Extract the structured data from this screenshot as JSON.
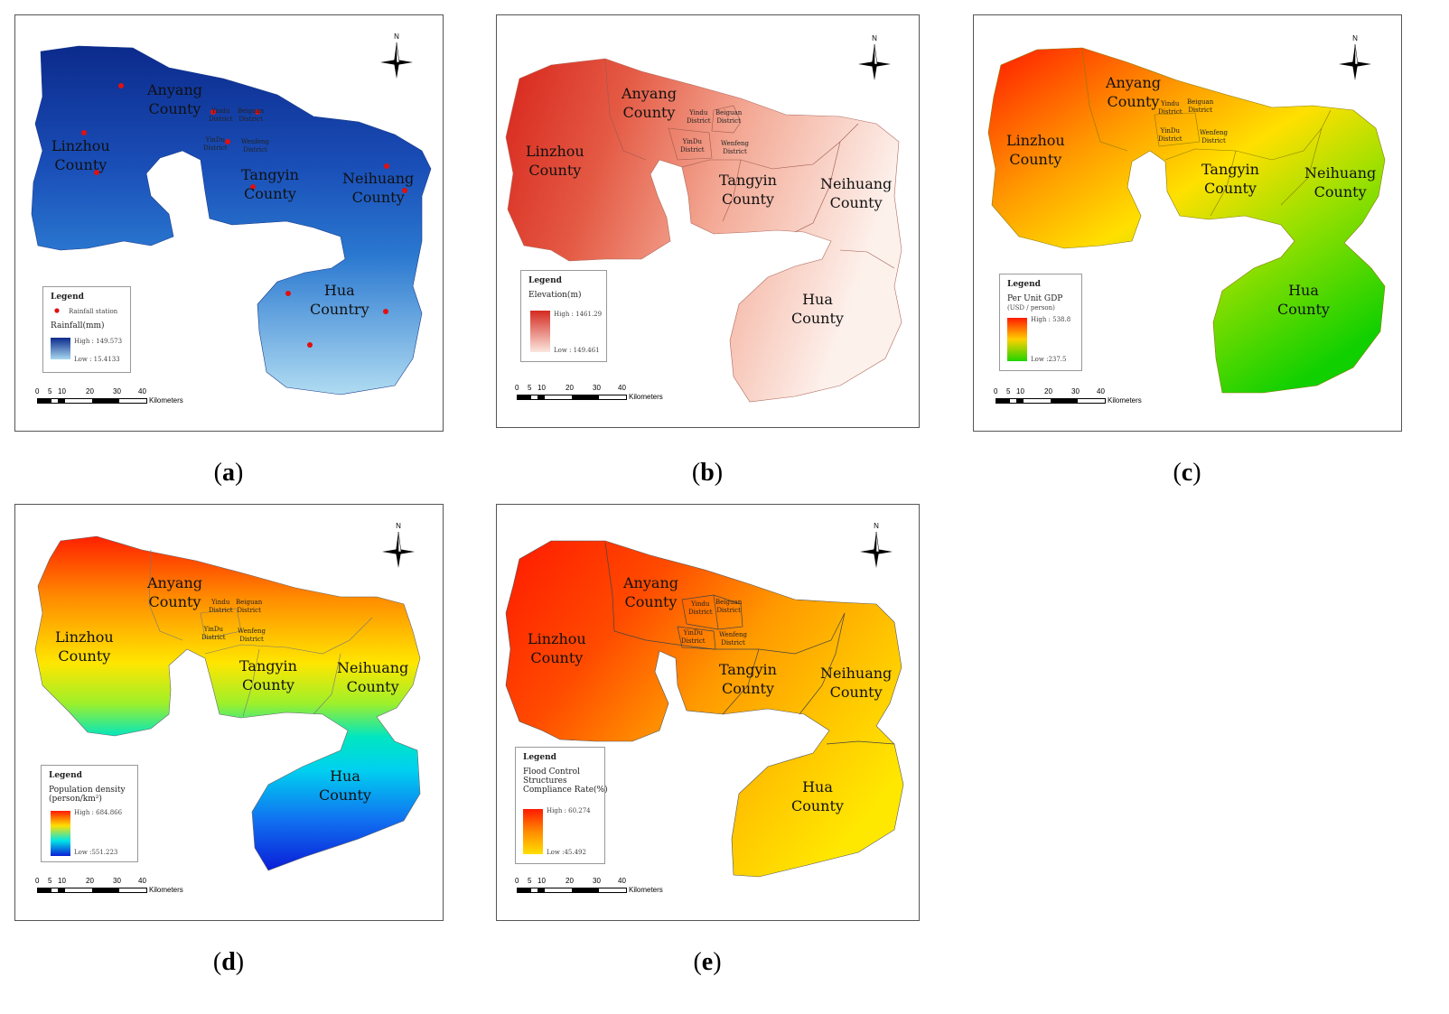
{
  "scale_bar": {
    "ticks": [
      "0",
      "5",
      "10",
      "20",
      "30",
      "40"
    ],
    "unit": "Kilometers"
  },
  "north_label": "N",
  "counties": {
    "anyang": "Anyang\nCounty",
    "linzhou": "Linzhou\nCounty",
    "tangyin": "Tangyin\nCounty",
    "neihuang": "Neihuang\nCounty",
    "hua": "Hua\nCounty",
    "hua_a": "Hua\nCountry"
  },
  "districts": {
    "yindu": "Yindu\nDistrict",
    "beiguan": "Beiguan\nDistrict",
    "yindu2": "YinDu\nDistrict",
    "wenfeng": "Wenfeng\nDistrict"
  },
  "panels": [
    {
      "id": "a",
      "caption": "a",
      "legend": {
        "title": "Legend",
        "station_label": "Rainfall station",
        "field": "Rainfall(mm)",
        "high": "High : 149.573",
        "low": "Low : 15.4133"
      },
      "colors": {
        "top": "#0c2a8c",
        "mid": "#1e64c8",
        "bottom": "#a8d8f0"
      }
    },
    {
      "id": "b",
      "caption": "b",
      "legend": {
        "title": "Legend",
        "field": "Elevation(m)",
        "high": "High : 1461.29",
        "low": "Low : 149.461"
      },
      "colors": {
        "left": "#d42a20",
        "right": "#fbe6de"
      }
    },
    {
      "id": "c",
      "caption": "c",
      "legend": {
        "title": "Legend",
        "field": "Per Unit GDP",
        "field_unit": "(USD / person)",
        "high": "High : 538.8",
        "low": "Low :237.5"
      },
      "colors": {
        "high": "#ff1a00",
        "mid": "#ffd000",
        "low": "#1fd400"
      }
    },
    {
      "id": "d",
      "caption": "d",
      "legend": {
        "title": "Legend",
        "field": "Population density\n(person/km²)",
        "high": "High : 684.866",
        "low": "Low :551.223"
      },
      "colors": {
        "high": "#ff1a00",
        "mid1": "#ffe000",
        "mid2": "#00e6e6",
        "low": "#0a1ed8"
      }
    },
    {
      "id": "e",
      "caption": "e",
      "legend": {
        "title": "Legend",
        "field": "Flood Control\nStructures\nCompliance Rate(%)",
        "high": "High : 60.274",
        "low": "Low :45.492"
      },
      "colors": {
        "high": "#ff1a00",
        "mid": "#ff8a00",
        "low": "#ffe000"
      }
    }
  ]
}
